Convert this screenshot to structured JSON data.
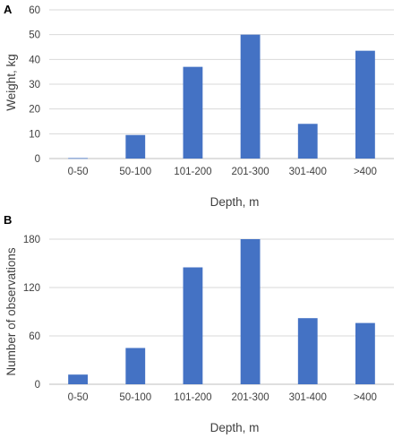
{
  "chart_data": [
    {
      "panel": "A",
      "type": "bar",
      "categories": [
        "0-50",
        "50-100",
        "101-200",
        "201-300",
        "301-400",
        ">400"
      ],
      "values": [
        0.2,
        9.5,
        37,
        50,
        14,
        43.5
      ],
      "title": "",
      "xlabel": "Depth, m",
      "ylabel": "Weight, kg",
      "ylim": [
        0,
        60
      ],
      "yticks": [
        0,
        10,
        20,
        30,
        40,
        50,
        60
      ],
      "grid": true,
      "color": "#4472C4"
    },
    {
      "panel": "B",
      "type": "bar",
      "categories": [
        "0-50",
        "50-100",
        "101-200",
        "201-300",
        "301-400",
        ">400"
      ],
      "values": [
        12,
        45,
        145,
        180,
        82,
        76
      ],
      "title": "",
      "xlabel": "Depth, m",
      "ylabel": "Number of observations",
      "ylim": [
        0,
        180
      ],
      "yticks": [
        0,
        60,
        120,
        180
      ],
      "grid": true,
      "color": "#4472C4"
    }
  ]
}
